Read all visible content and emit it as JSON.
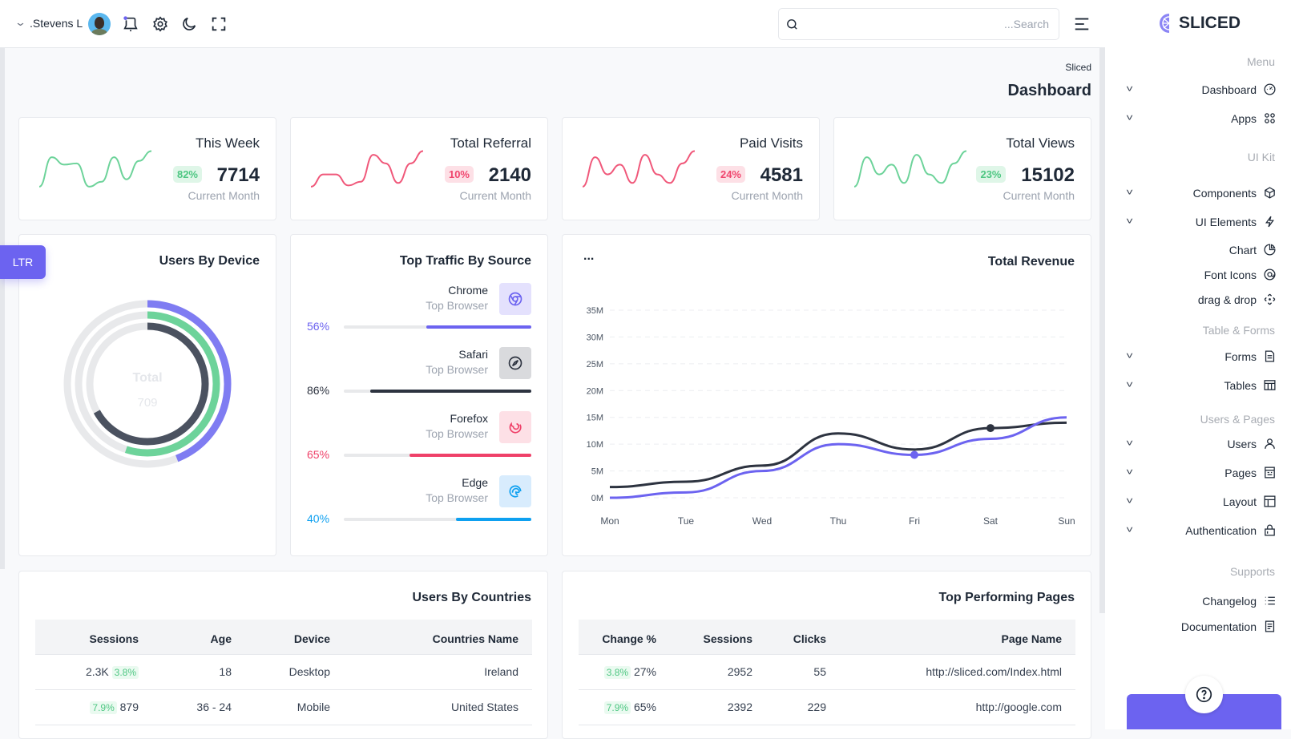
{
  "header": {
    "user_name": ".Stevens L",
    "search_placeholder": "...Search",
    "icons": [
      "chevron-down-icon",
      "avatar",
      "bell-icon",
      "gear-icon",
      "moon-icon",
      "fullscreen-icon",
      "search-icon",
      "menu-icon"
    ],
    "notification_dot_color": "#6c63f0"
  },
  "page": {
    "breadcrumb": "Sliced",
    "title": "Dashboard",
    "ltr_label": "LTR"
  },
  "stats": [
    {
      "title": "This Week",
      "value": "7714",
      "badge": "82%",
      "badge_tone": "green",
      "sub": "Current Month",
      "color": "#6dd39a",
      "spark": [
        20,
        140,
        110,
        115,
        20,
        40,
        140,
        50,
        125,
        165
      ]
    },
    {
      "title": "Total Referral",
      "value": "2140",
      "badge": "10%",
      "badge_tone": "red",
      "sub": "Current Month",
      "color": "#f0587a",
      "spark": [
        20,
        70,
        70,
        25,
        40,
        150,
        115,
        35,
        115,
        165
      ]
    },
    {
      "title": "Paid Visits",
      "value": "4581",
      "badge": "24%",
      "badge_tone": "red",
      "sub": "Current Month",
      "color": "#f0587a",
      "spark": [
        20,
        140,
        70,
        110,
        35,
        150,
        70,
        35,
        115,
        165
      ]
    },
    {
      "title": "Total Views",
      "value": "15102",
      "badge": "23%",
      "badge_tone": "green",
      "sub": "Current Month",
      "color": "#6dd39a",
      "spark": [
        20,
        140,
        70,
        110,
        35,
        150,
        70,
        35,
        115,
        165
      ]
    }
  ],
  "device": {
    "title": "Users By Device",
    "center_label": "Total",
    "center_value": "709",
    "rings": [
      {
        "fraction": 0.44,
        "color": "#7f7cf2"
      },
      {
        "fraction": 0.55,
        "color": "#6dd39a"
      },
      {
        "fraction": 0.67,
        "color": "#4b5260"
      }
    ]
  },
  "traffic": {
    "title": "Top Traffic By Source",
    "items": [
      {
        "name": "Chrome",
        "sub": "Top Browser",
        "percent": "56%",
        "value": 56,
        "color": "#6c63f0",
        "icon_bg": "#e4e1fd",
        "icon": "chrome-icon"
      },
      {
        "name": "Safari",
        "sub": "Top Browser",
        "percent": "86%",
        "value": 86,
        "color": "#2d3340",
        "icon_bg": "#d9dadd",
        "icon": "compass-icon"
      },
      {
        "name": "Forefox",
        "sub": "Top Browser",
        "percent": "65%",
        "value": 65,
        "color": "#ef4169",
        "icon_bg": "#fde0e6",
        "icon": "firefox-icon"
      },
      {
        "name": "Edge",
        "sub": "Top Browser",
        "percent": "40%",
        "value": 40,
        "color": "#0ea0f0",
        "icon_bg": "#d8ecfd",
        "icon": "edge-icon"
      }
    ]
  },
  "revenue": {
    "title": "Total Revenue",
    "more_label": "..."
  },
  "chart_data": {
    "type": "line",
    "title": "Total Revenue",
    "categories": [
      "Mon",
      "Tue",
      "Wed",
      "Thu",
      "Fri",
      "Sat",
      "Sun"
    ],
    "series": [
      {
        "values": [
          2,
          3,
          6,
          12,
          9,
          13,
          14
        ],
        "color": "#2d3340",
        "marker_at": "Sat"
      },
      {
        "values": [
          0,
          1,
          5,
          10,
          8,
          11,
          15
        ],
        "color": "#6c63f0",
        "marker_at": "Fri"
      }
    ],
    "yticks": [
      "0M",
      "5M",
      "10M",
      "15M",
      "20M",
      "25M",
      "30M",
      "35M"
    ],
    "ylim": [
      0,
      35
    ],
    "grid": true
  },
  "countries": {
    "title": "Users By Countries",
    "columns": [
      "Sessions",
      "Age",
      "Device",
      "Countries Name"
    ],
    "rows": [
      {
        "sessions": "2.3K",
        "change": "3.8%",
        "change_pos": "after",
        "age": "18",
        "device": "Desktop",
        "country": "Ireland"
      },
      {
        "sessions": "879",
        "change": "7.9%",
        "change_pos": "before",
        "age": "36 - 24",
        "device": "Mobile",
        "country": "United States"
      }
    ]
  },
  "pages": {
    "title": "Top Performing Pages",
    "columns": [
      "Change %",
      "Sessions",
      "Clicks",
      "Page Name"
    ],
    "rows": [
      {
        "badge": "3.8%",
        "change": "27%",
        "sessions": "2952",
        "clicks": "55",
        "page": "http://sliced.com/Index.html"
      },
      {
        "badge": "7.9%",
        "change": "65%",
        "sessions": "2392",
        "clicks": "229",
        "page": "http://google.com"
      }
    ]
  },
  "sidebar": {
    "brand": "SLICED",
    "sections": [
      {
        "label": "Menu",
        "items": [
          {
            "label": "Dashboard",
            "icon": "gauge-icon",
            "chevron": true
          },
          {
            "label": "Apps",
            "icon": "apps-icon",
            "chevron": true
          }
        ]
      },
      {
        "label": "UI Kit",
        "items": [
          {
            "label": "Components",
            "icon": "cube-icon",
            "chevron": true
          },
          {
            "label": "UI Elements",
            "icon": "bolt-icon",
            "chevron": true
          },
          {
            "label": "Chart",
            "icon": "pie-chart-icon",
            "chevron": false
          },
          {
            "label": "Font Icons",
            "icon": "at-icon",
            "chevron": false
          },
          {
            "label": "drag & drop",
            "icon": "move-icon",
            "chevron": false
          }
        ]
      },
      {
        "label": "Table & Forms",
        "items": [
          {
            "label": "Forms",
            "icon": "form-icon",
            "chevron": true
          },
          {
            "label": "Tables",
            "icon": "table-icon",
            "chevron": true
          }
        ]
      },
      {
        "label": "Users & Pages",
        "items": [
          {
            "label": "Users",
            "icon": "user-icon",
            "chevron": true
          },
          {
            "label": "Pages",
            "icon": "pages-icon",
            "chevron": true
          },
          {
            "label": "Layout",
            "icon": "layout-icon",
            "chevron": true
          },
          {
            "label": "Authentication",
            "icon": "lock-icon",
            "chevron": true
          }
        ]
      },
      {
        "label": "Supports",
        "items": [
          {
            "label": "Changelog",
            "icon": "list-icon",
            "chevron": false
          },
          {
            "label": "Documentation",
            "icon": "document-icon",
            "chevron": false
          }
        ]
      }
    ],
    "help_icon": "help-icon",
    "accent": "#6c63f0"
  }
}
